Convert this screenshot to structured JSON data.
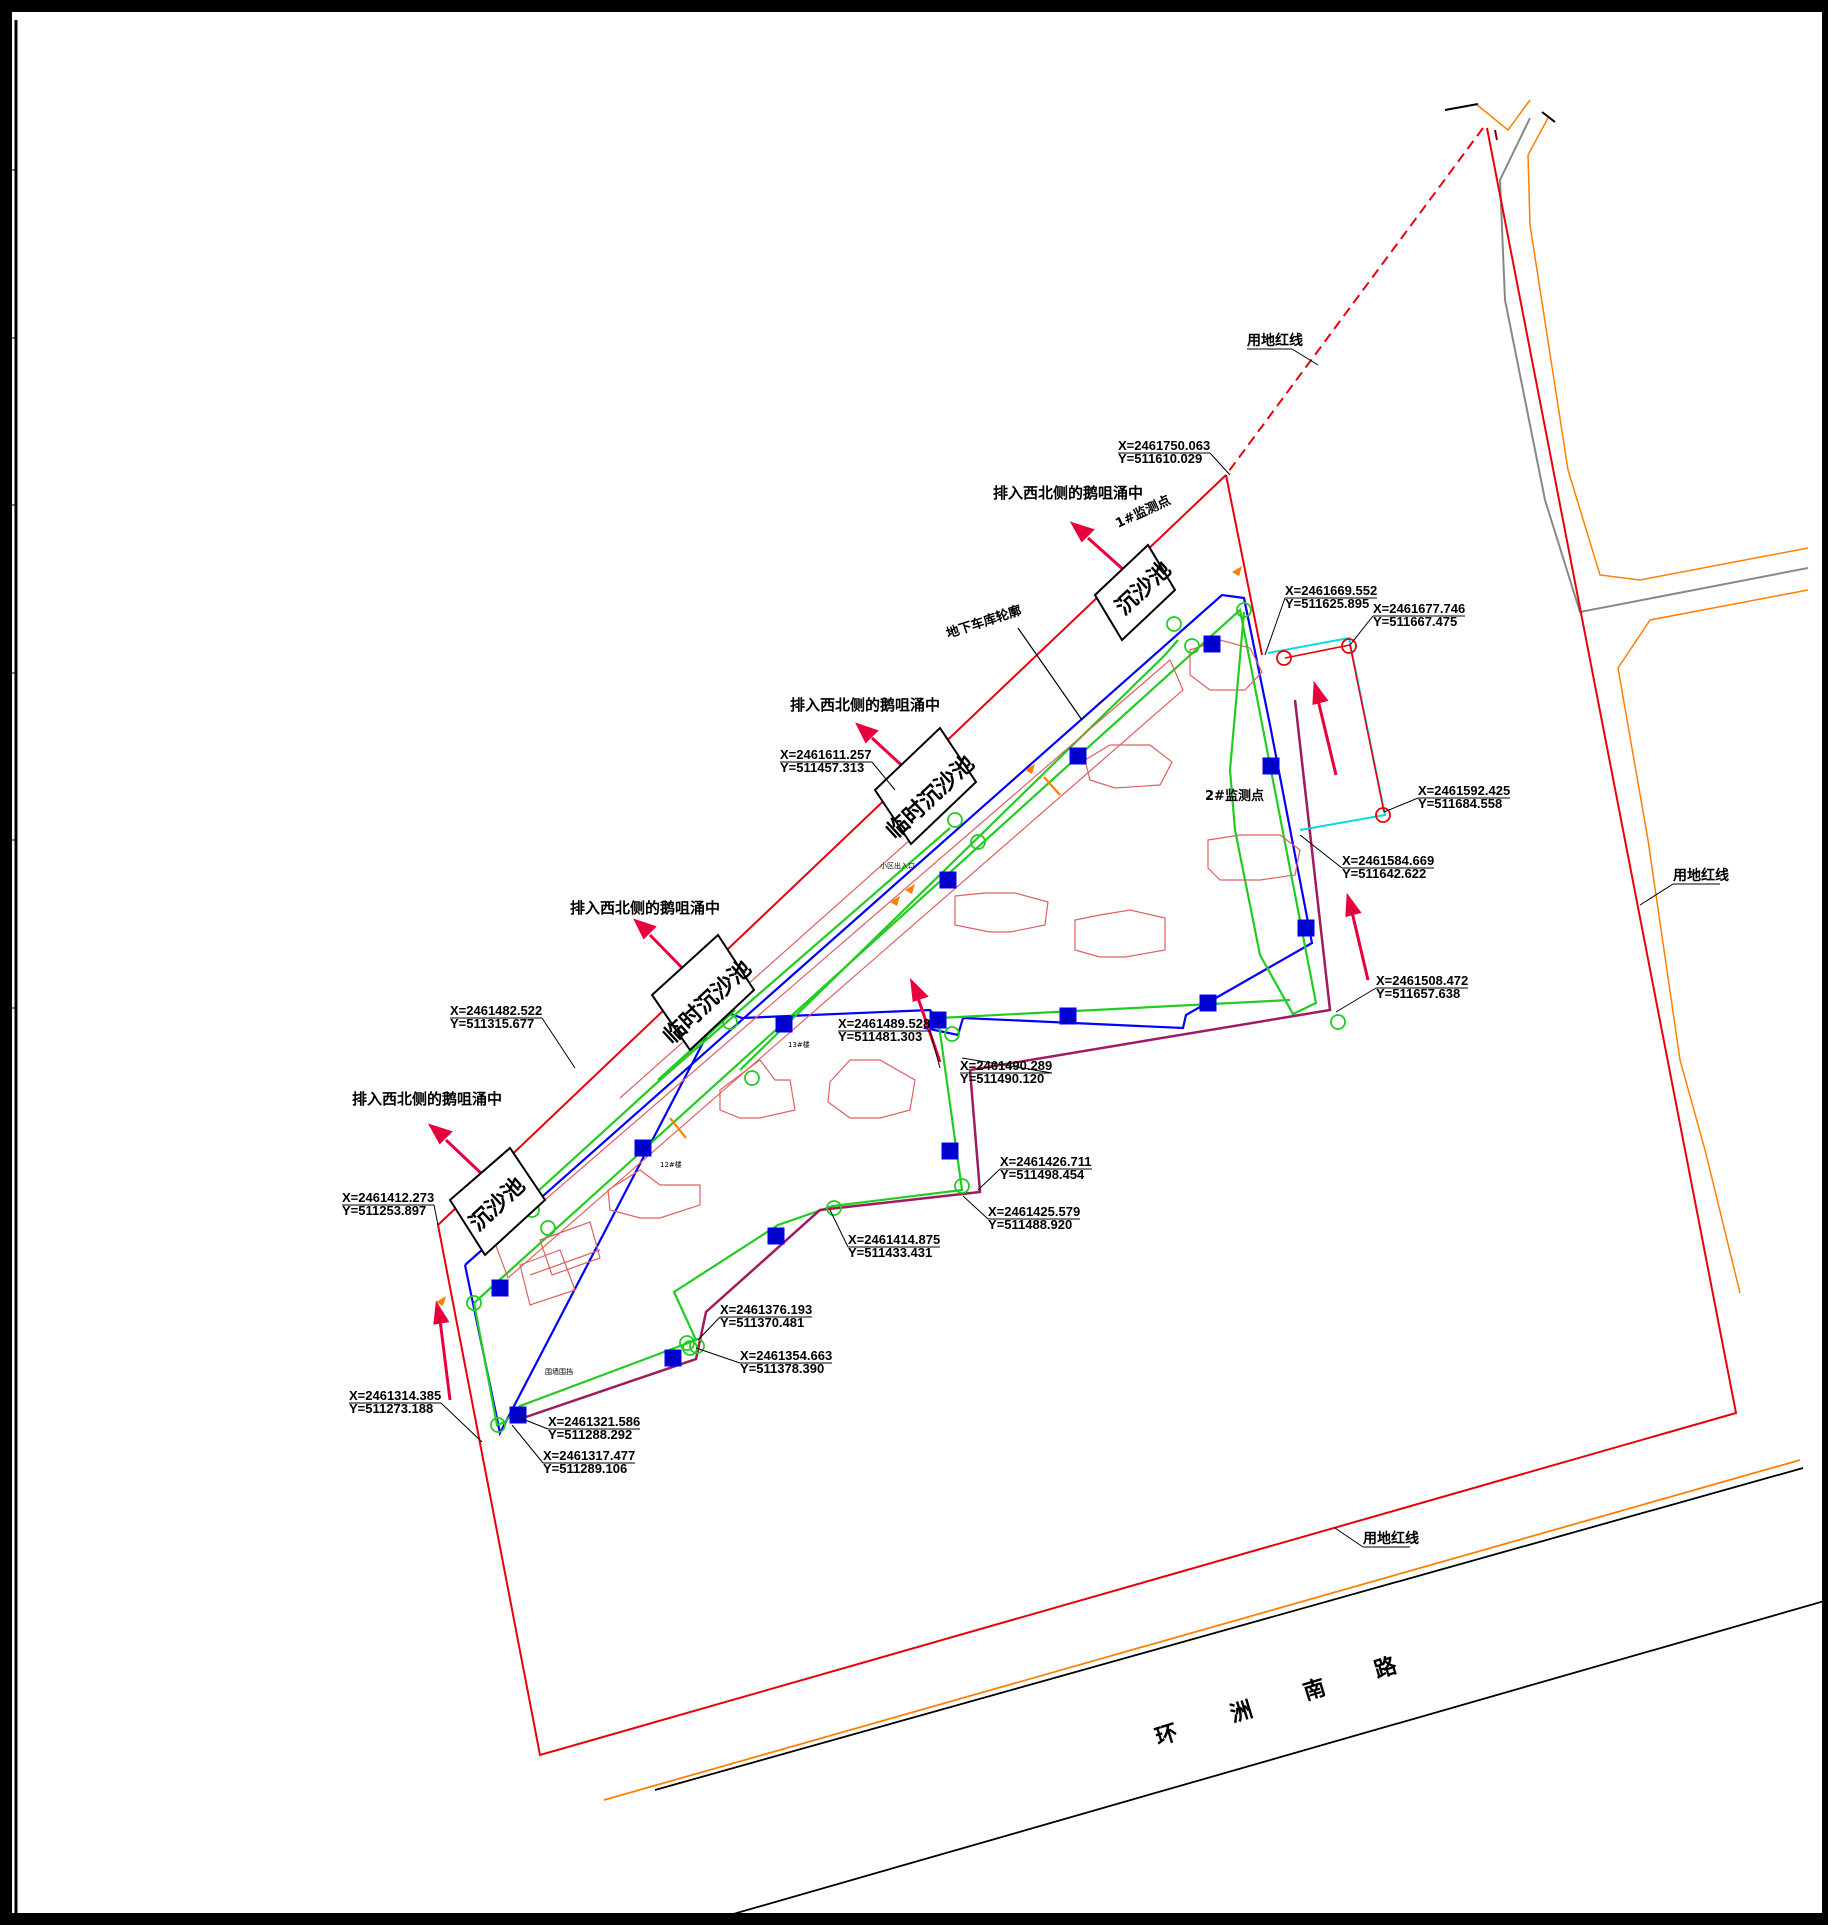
{
  "colors": {
    "site_boundary": "#e8000b",
    "structure_outline": "#0000ff",
    "pipe": "#22cc22",
    "arrow": "#e8003c",
    "road_edge": "#ff8000",
    "road_center": "#000000",
    "wall": "#9e1b5e",
    "existing_pipe": "#00dddd",
    "building": "#e06060",
    "building_alt": "#9e9e9e"
  },
  "labels": {
    "red_line_top": "用地红线",
    "red_line_right": "用地红线",
    "red_line_bottom": "用地红线",
    "garage_outline": "地下车库轮廓",
    "drain_note": "排入西北侧的鹅咀涌中",
    "basin_1": "沉沙池",
    "basin_2": "临时沉沙池",
    "basin_3": "临时沉沙池",
    "basin_4": "沉沙池",
    "monitor_1": "1#监测点",
    "monitor_2": "2#监测点",
    "road_name": [
      "环",
      "洲",
      "南",
      "路"
    ],
    "bldg_13": "13#楼",
    "bldg_12": "12#楼",
    "fence_label": "围墙围挡",
    "entry_label": "小区出入口"
  },
  "coordinates": [
    {
      "x": "X=2461750.063",
      "y": "Y=511610.029"
    },
    {
      "x": "X=2461669.552",
      "y": "Y=511625.895"
    },
    {
      "x": "X=2461677.746",
      "y": "Y=511667.475"
    },
    {
      "x": "X=2461592.425",
      "y": "Y=511684.558"
    },
    {
      "x": "X=2461584.669",
      "y": "Y=511642.622"
    },
    {
      "x": "X=2461508.472",
      "y": "Y=511657.638"
    },
    {
      "x": "X=2461611.257",
      "y": "Y=511457.313"
    },
    {
      "x": "X=2461489.528",
      "y": "Y=511481.303"
    },
    {
      "x": "X=2461490.289",
      "y": "Y=511490.120"
    },
    {
      "x": "X=2461426.711",
      "y": "Y=511498.454"
    },
    {
      "x": "X=2461425.579",
      "y": "Y=511488.920"
    },
    {
      "x": "X=2461414.875",
      "y": "Y=511433.431"
    },
    {
      "x": "X=2461376.193",
      "y": "Y=511370.481"
    },
    {
      "x": "X=2461354.663",
      "y": "Y=511378.390"
    },
    {
      "x": "X=2461321.586",
      "y": "Y=511288.292"
    },
    {
      "x": "X=2461317.477",
      "y": "Y=511289.106"
    },
    {
      "x": "X=2461314.385",
      "y": "Y=511273.188"
    },
    {
      "x": "X=2461412.273",
      "y": "Y=511253.897"
    },
    {
      "x": "X=2461482.522",
      "y": "Y=511315.677"
    }
  ]
}
